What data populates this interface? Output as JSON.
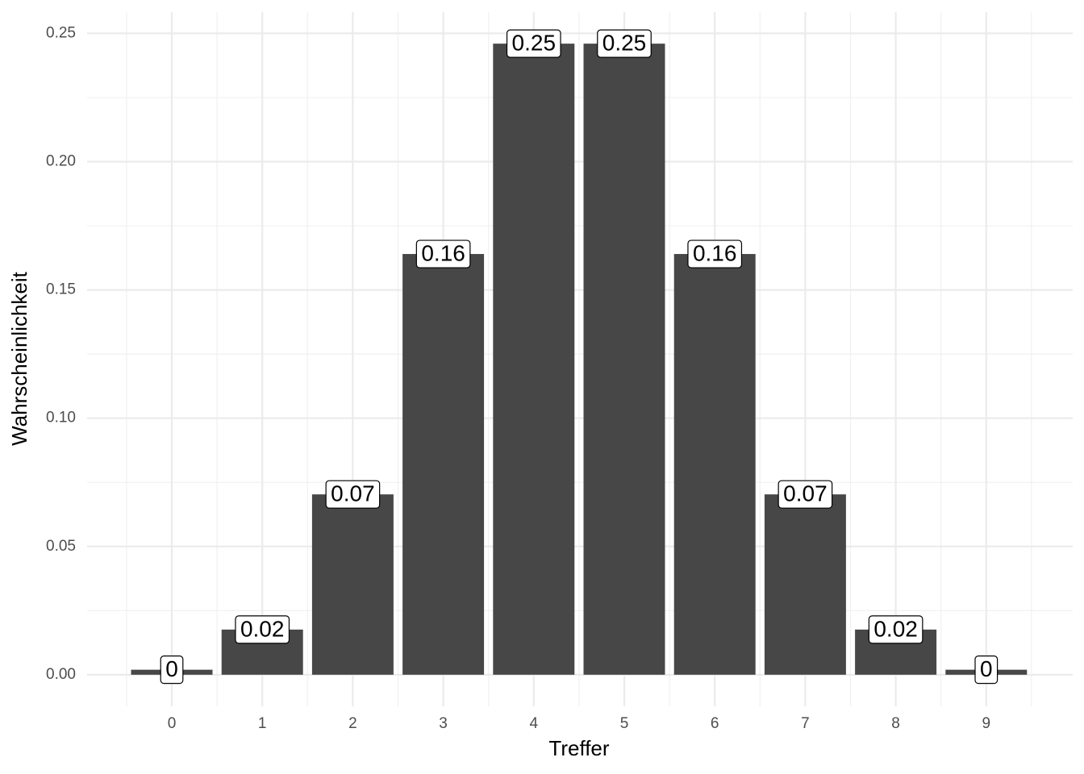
{
  "chart_data": {
    "type": "bar",
    "x_label": "Treffer",
    "y_label": "Wahrscheinlichkeit",
    "categories": [
      "0",
      "1",
      "2",
      "3",
      "4",
      "5",
      "6",
      "7",
      "8",
      "9"
    ],
    "values": [
      0.00195,
      0.0176,
      0.0703,
      0.164,
      0.246,
      0.246,
      0.164,
      0.0703,
      0.0176,
      0.00195
    ],
    "value_labels": [
      "0",
      "0.02",
      "0.07",
      "0.16",
      "0.25",
      "0.25",
      "0.16",
      "0.07",
      "0.02",
      "0"
    ],
    "color": "#474747",
    "ylim": [
      -0.0123,
      0.2583
    ],
    "yticks": [
      {
        "value": 0,
        "label": "0.00"
      },
      {
        "value": 0.05,
        "label": "0.05"
      },
      {
        "value": 0.1,
        "label": "0.10"
      },
      {
        "value": 0.15,
        "label": "0.15"
      },
      {
        "value": 0.2,
        "label": "0.20"
      },
      {
        "value": 0.25,
        "label": "0.25"
      }
    ],
    "grid": true
  }
}
